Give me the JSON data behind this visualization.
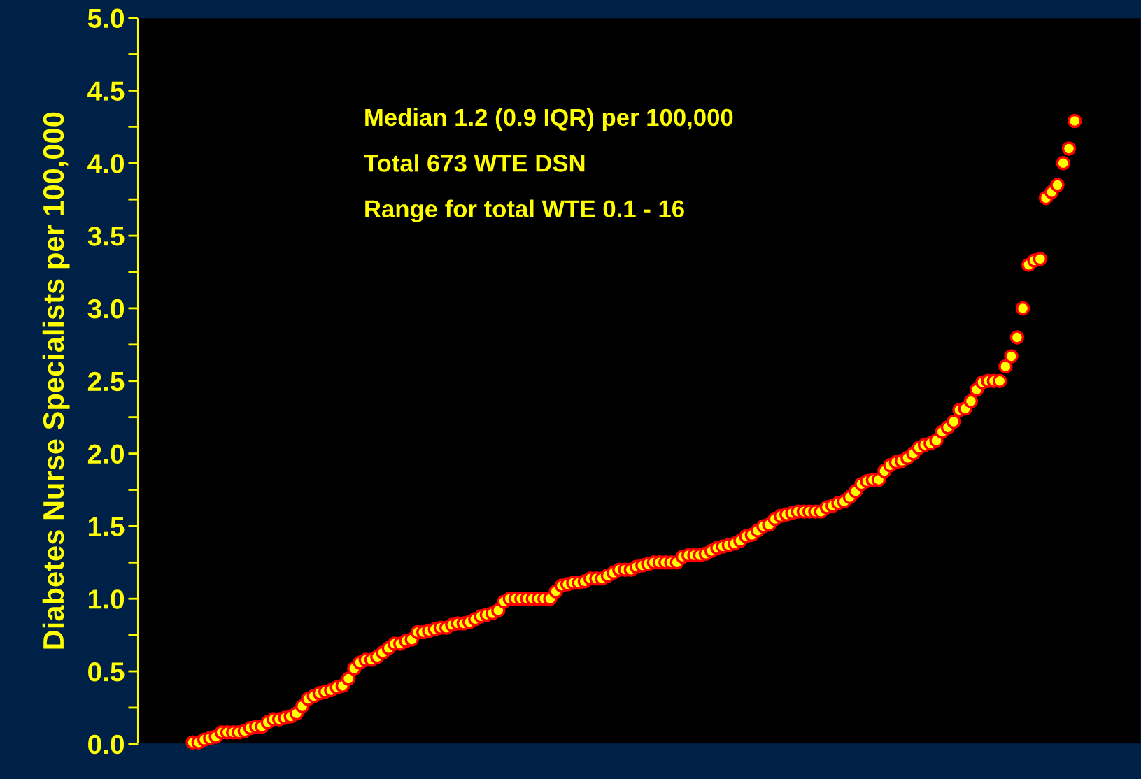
{
  "chart_data": {
    "type": "scatter",
    "ylabel": "Diabetes Nurse Specialists per 100,000",
    "annotations": [
      "Median 1.2 (0.9 IQR) per 100,000",
      "Total 673 WTE DSN",
      "Range for total WTE 0.1 - 16"
    ],
    "categories": [
      null,
      null,
      null,
      null,
      null,
      null,
      null,
      null,
      null,
      null,
      null,
      null,
      null,
      null,
      null,
      null,
      null,
      null,
      null,
      null,
      null,
      null,
      null,
      null,
      null,
      null,
      null,
      null,
      null,
      null,
      null,
      null,
      null,
      null,
      null,
      null,
      null,
      null,
      null,
      null,
      null,
      null,
      null,
      null,
      null,
      null,
      null,
      null,
      null,
      null,
      null,
      null,
      null,
      null,
      null,
      null,
      null,
      null,
      null,
      null,
      null,
      null,
      null,
      null,
      null,
      null,
      null,
      null,
      null,
      null,
      null,
      null,
      null,
      null,
      null,
      null,
      null,
      null,
      null,
      null,
      null,
      null,
      null,
      null,
      null,
      null,
      null,
      null,
      null,
      null,
      null,
      null,
      null,
      null,
      null,
      null,
      null,
      null,
      null,
      null,
      null,
      null,
      null,
      null,
      null,
      null,
      null,
      null,
      null,
      null,
      null,
      null,
      null,
      null,
      null,
      null,
      null,
      null,
      null,
      null,
      null,
      null,
      null,
      null,
      null,
      null,
      null,
      null,
      null,
      null,
      null,
      null,
      null,
      null,
      null,
      null,
      null,
      null,
      null,
      null,
      null,
      null,
      null,
      null,
      null,
      null,
      null,
      null,
      null,
      null,
      null,
      null,
      null,
      null,
      null,
      null,
      null,
      null,
      null,
      null,
      null,
      null,
      null,
      null,
      null,
      null,
      null,
      null,
      null,
      null,
      null,
      null,
      null,
      null
    ],
    "series": [
      {
        "color": "#ffff00",
        "values": [
          null,
          null,
          null,
          null,
          null,
          null,
          null,
          null,
          null,
          0.01,
          0.01,
          0.03,
          0.04,
          0.05,
          0.08,
          0.08,
          0.08,
          0.08,
          0.09,
          0.11,
          0.12,
          0.12,
          0.15,
          0.17,
          0.17,
          0.18,
          0.19,
          0.21,
          0.26,
          0.31,
          0.33,
          0.35,
          0.36,
          0.37,
          0.39,
          0.4,
          0.45,
          0.52,
          0.56,
          0.58,
          0.58,
          0.6,
          0.63,
          0.66,
          0.69,
          0.69,
          0.71,
          0.72,
          0.77,
          0.77,
          0.78,
          0.79,
          0.8,
          0.8,
          0.82,
          0.83,
          0.83,
          0.84,
          0.86,
          0.88,
          0.89,
          0.9,
          0.92,
          0.98,
          1.0,
          1.0,
          1.0,
          1.0,
          1.0,
          1.0,
          1.0,
          1.0,
          1.05,
          1.09,
          1.1,
          1.11,
          1.11,
          1.12,
          1.14,
          1.14,
          1.14,
          1.16,
          1.18,
          1.2,
          1.2,
          1.2,
          1.22,
          1.23,
          1.24,
          1.25,
          1.25,
          1.25,
          1.25,
          1.25,
          1.29,
          1.3,
          1.3,
          1.3,
          1.31,
          1.33,
          1.35,
          1.36,
          1.37,
          1.38,
          1.4,
          1.43,
          1.44,
          1.47,
          1.5,
          1.51,
          1.55,
          1.57,
          1.58,
          1.59,
          1.6,
          1.6,
          1.6,
          1.6,
          1.6,
          1.63,
          1.64,
          1.66,
          1.67,
          1.7,
          1.74,
          1.79,
          1.81,
          1.82,
          1.82,
          1.88,
          1.92,
          1.94,
          1.95,
          1.97,
          2.0,
          2.04,
          2.06,
          2.07,
          2.09,
          2.15,
          2.18,
          2.22,
          2.3,
          2.31,
          2.36,
          2.44,
          2.49,
          2.5,
          2.5,
          2.5,
          2.6,
          2.67,
          2.8,
          3.0,
          3.3,
          3.33,
          3.34,
          3.76,
          3.8,
          3.85,
          4.0,
          4.1,
          4.29,
          null,
          null,
          null,
          null,
          null,
          null,
          null,
          null,
          null,
          null,
          null
        ]
      }
    ],
    "ylim": [
      0,
      5
    ],
    "yticks": [
      {
        "value": 0,
        "label": "0.0"
      },
      {
        "value": 0.25,
        "label": null
      },
      {
        "value": 0.5,
        "label": "0.5"
      },
      {
        "value": 0.75,
        "label": null
      },
      {
        "value": 1,
        "label": "1.0"
      },
      {
        "value": 1.25,
        "label": null
      },
      {
        "value": 1.5,
        "label": "1.5"
      },
      {
        "value": 1.75,
        "label": null
      },
      {
        "value": 2,
        "label": "2.0"
      },
      {
        "value": 2.25,
        "label": null
      },
      {
        "value": 2.5,
        "label": "2.5"
      },
      {
        "value": 2.75,
        "label": null
      },
      {
        "value": 3,
        "label": "3.0"
      },
      {
        "value": 3.25,
        "label": null
      },
      {
        "value": 3.5,
        "label": "3.5"
      },
      {
        "value": 3.75,
        "label": null
      },
      {
        "value": 4,
        "label": "4.0"
      },
      {
        "value": 4.25,
        "label": null
      },
      {
        "value": 4.5,
        "label": "4.5"
      },
      {
        "value": 4.75,
        "label": null
      },
      {
        "value": 5,
        "label": "5.0"
      }
    ],
    "marker": "circle",
    "grid": false,
    "legend": false
  }
}
